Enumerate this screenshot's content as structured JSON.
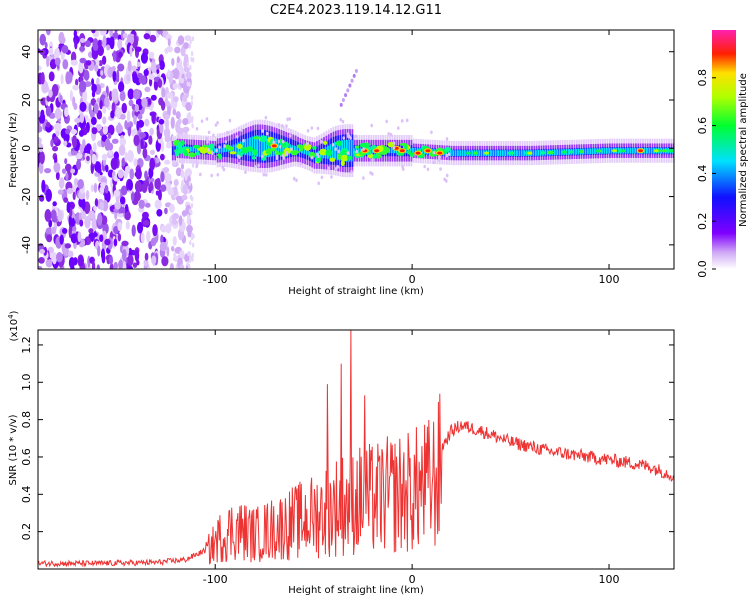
{
  "title": "C2E4.2023.119.14.12.G11",
  "chart_data": [
    {
      "type": "heatmap",
      "xlabel": "Height of straight line (km)",
      "ylabel": "Frequency (Hz)",
      "xlim": [
        -190,
        133
      ],
      "ylim": [
        -50,
        49
      ],
      "x_ticks": [
        -100,
        0,
        100
      ],
      "y_ticks": [
        -40,
        -20,
        0,
        20,
        40
      ],
      "colorbar": {
        "label": "Normalized spectral amplitude",
        "range": [
          0,
          1
        ],
        "ticks": [
          "0.0",
          "0.2",
          "0.4",
          "0.6",
          "0.8"
        ],
        "colormap": "white-purple-blue-cyan-green-yellow-red-magenta"
      },
      "signal_band_center_hz": [
        [
          -120,
          0
        ],
        [
          -100,
          -1
        ],
        [
          -80,
          1
        ],
        [
          -60,
          0
        ],
        [
          -50,
          -3
        ],
        [
          -40,
          -1
        ],
        [
          -20,
          -1
        ],
        [
          0,
          -1
        ],
        [
          20,
          -2
        ],
        [
          60,
          -2
        ],
        [
          100,
          -1
        ],
        [
          133,
          -1
        ]
      ],
      "noise_region_km": [
        -190,
        -113
      ]
    },
    {
      "type": "line",
      "xlabel": "Height of straight line (km)",
      "ylabel": "SNR (10 * v/v)",
      "y_multiplier": "(x10",
      "y_multiplier_exp": "4",
      "y_multiplier_close": ")",
      "xlim": [
        -190,
        133
      ],
      "ylim": [
        0,
        1.28
      ],
      "x_ticks": [
        -100,
        0,
        100
      ],
      "y_ticks": [
        "0.2",
        "0.4",
        "0.6",
        "0.8",
        "1.0",
        "1.2"
      ],
      "color": "#ee3333",
      "series": [
        {
          "x": [
            -190,
            -160,
            -130,
            -115,
            -105,
            -98,
            -90,
            -80,
            -70,
            -60,
            -50,
            -40,
            -30,
            -20,
            -10,
            0,
            10,
            15,
            20,
            25,
            35,
            50,
            70,
            90,
            110,
            120,
            133
          ],
          "y": [
            0.03,
            0.03,
            0.035,
            0.05,
            0.1,
            0.2,
            0.26,
            0.22,
            0.26,
            0.3,
            0.34,
            0.4,
            0.44,
            0.45,
            0.48,
            0.5,
            0.55,
            0.65,
            0.74,
            0.77,
            0.74,
            0.68,
            0.63,
            0.6,
            0.57,
            0.55,
            0.5
          ]
        }
      ],
      "peaks": [
        {
          "x": -31,
          "y": 1.28
        },
        {
          "x": -36,
          "y": 1.1
        },
        {
          "x": -43,
          "y": 0.99
        },
        {
          "x": -24,
          "y": 0.93
        }
      ]
    }
  ]
}
